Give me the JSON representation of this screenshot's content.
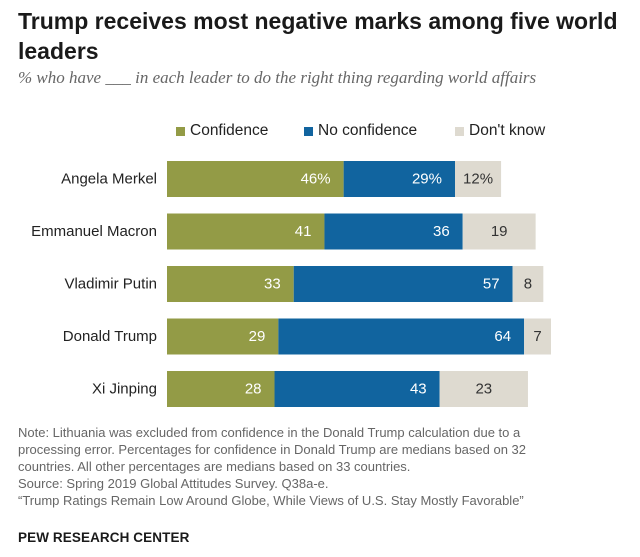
{
  "title": "Trump receives most negative marks among five world leaders",
  "subtitle": "% who have ___ in each leader to do the right thing regarding world affairs",
  "colors": {
    "confidence": "#939b46",
    "no_confidence": "#11649f",
    "dont_know": "#dedad0"
  },
  "chart_data": {
    "type": "bar",
    "orientation": "horizontal",
    "stacked": true,
    "title": "Trump receives most negative marks among five world leaders",
    "categories": [
      "Angela Merkel",
      "Emmanuel Macron",
      "Vladimir Putin",
      "Donald Trump",
      "Xi Jinping"
    ],
    "series": [
      {
        "name": "Confidence",
        "values": [
          46,
          41,
          33,
          29,
          28
        ],
        "labels": [
          "46%",
          "41",
          "33",
          "29",
          "28"
        ]
      },
      {
        "name": "No confidence",
        "values": [
          29,
          36,
          57,
          64,
          43
        ],
        "labels": [
          "29%",
          "36",
          "57",
          "64",
          "43"
        ]
      },
      {
        "name": "Don't know",
        "values": [
          12,
          19,
          8,
          7,
          23
        ],
        "labels": [
          "12%",
          "19",
          "8",
          "7",
          "23"
        ]
      }
    ],
    "xlim": [
      0,
      100
    ]
  },
  "notes": [
    "Note: Lithuania was excluded from confidence in the Donald Trump calculation due to a",
    "processing error. Percentages for confidence in Donald Trump are medians based on 32",
    "countries. All other percentages are medians based on 33 countries.",
    "Source: Spring 2019 Global Attitudes Survey. Q38a-e.",
    "“Trump Ratings Remain Low Around Globe, While Views of U.S. Stay Mostly Favorable”"
  ],
  "footer": "PEW RESEARCH CENTER"
}
